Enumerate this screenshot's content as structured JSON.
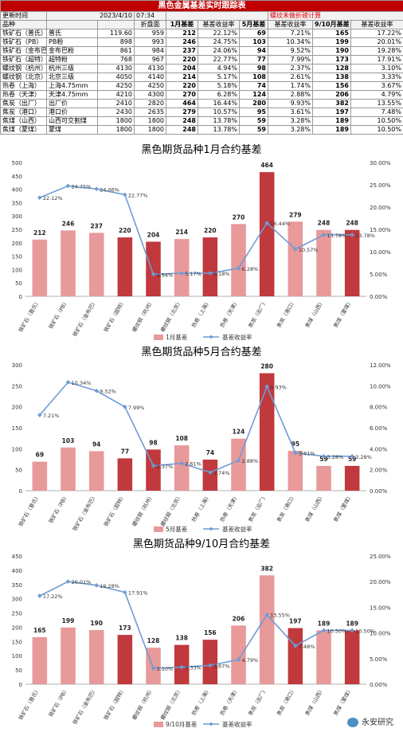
{
  "table": {
    "title": "黑色金属基差实时跟踪表",
    "update_label": "更新时间",
    "date": "2023/4/10",
    "time": "07:34",
    "note": "螺纹未做折磅计算",
    "headers": [
      "品种",
      "",
      "",
      "折盘面",
      "1月基差",
      "基差收益率",
      "5月基差",
      "基差收益率",
      "9/10月基差",
      "基差收益率"
    ],
    "rows": [
      [
        "铁矿石（普氏）",
        "普氏",
        "119.60",
        "959",
        "212",
        "22.12%",
        "69",
        "7.21%",
        "165",
        "17.22%"
      ],
      [
        "铁矿石（PB）",
        "PB粉",
        "898",
        "993",
        "246",
        "24.75%",
        "103",
        "10.34%",
        "199",
        "20.01%"
      ],
      [
        "铁矿石（金布巴）",
        "金布巴粉",
        "861",
        "984",
        "237",
        "24.06%",
        "94",
        "9.52%",
        "190",
        "19.28%"
      ],
      [
        "铁矿石（超特）",
        "超特粉",
        "768",
        "967",
        "220",
        "22.77%",
        "77",
        "7.99%",
        "173",
        "17.91%"
      ],
      [
        "螺纹钢（杭州）",
        "杭州三级",
        "4130",
        "4130",
        "204",
        "4.94%",
        "98",
        "2.37%",
        "128",
        "3.10%"
      ],
      [
        "螺纹钢（北京）",
        "北京三级",
        "4050",
        "4140",
        "214",
        "5.17%",
        "108",
        "2.61%",
        "138",
        "3.33%"
      ],
      [
        "热卷（上海）",
        "上海4.75mm",
        "4250",
        "4250",
        "220",
        "5.18%",
        "74",
        "1.74%",
        "156",
        "3.67%"
      ],
      [
        "热卷（天津）",
        "天津4.75mm",
        "4210",
        "4300",
        "270",
        "6.28%",
        "124",
        "2.88%",
        "206",
        "4.79%"
      ],
      [
        "焦炭（出厂）",
        "出厂价",
        "2410",
        "2820",
        "464",
        "16.44%",
        "280",
        "9.93%",
        "382",
        "13.55%"
      ],
      [
        "焦炭（港口）",
        "港口价",
        "2430",
        "2635",
        "279",
        "10.57%",
        "95",
        "3.61%",
        "197",
        "7.48%"
      ],
      [
        "焦煤（山西）",
        "山西可交割煤",
        "1800",
        "1800",
        "248",
        "13.78%",
        "59",
        "3.28%",
        "189",
        "10.50%"
      ],
      [
        "焦煤（蒙煤）",
        "蒙煤",
        "1800",
        "1800",
        "248",
        "13.78%",
        "59",
        "3.28%",
        "189",
        "10.50%"
      ]
    ]
  },
  "chart_data": [
    {
      "type": "bar",
      "title": "黑色期货品种1月合约基差",
      "categories": [
        "铁矿石（普氏）",
        "铁矿石（PB）",
        "铁矿石（金布巴）",
        "铁矿石（超特）",
        "螺纹钢（杭州）",
        "螺纹钢（北京）",
        "热卷（上海）",
        "热卷（天津）",
        "焦炭（出厂）",
        "焦炭（港口）",
        "焦煤（山西）",
        "焦煤（蒙煤）"
      ],
      "series": [
        {
          "name": "1月基差",
          "type": "bar",
          "axis": "left",
          "values": [
            212,
            246,
            237,
            220,
            204,
            214,
            220,
            270,
            464,
            279,
            248,
            248
          ],
          "labels": [
            "212",
            "246",
            "237",
            "220",
            "204",
            "214",
            "220",
            "270",
            "464",
            "279",
            "248",
            "248"
          ]
        },
        {
          "name": "基差收益率",
          "type": "line",
          "axis": "right",
          "values": [
            22.12,
            24.75,
            24.06,
            22.77,
            4.94,
            5.17,
            5.18,
            6.28,
            16.44,
            10.57,
            13.78,
            13.78
          ],
          "labels": [
            "22.12%",
            "24.75%",
            "24.06%",
            "22.77%",
            "4.94%",
            "5.17%",
            "5.18%",
            "6.28%",
            "16.44%",
            "10.57%",
            "13.78%",
            "13.78%"
          ]
        }
      ],
      "bar_colors": [
        "#e8999a",
        "#e8999a",
        "#e8999a",
        "#c0393c",
        "#c0393c",
        "#e8999a",
        "#c0393c",
        "#e8999a",
        "#c0393c",
        "#e8999a",
        "#e8999a",
        "#c0393c"
      ],
      "line_color": "#6f9bd4",
      "ylim": [
        0,
        500
      ],
      "yticks": [
        0,
        50,
        100,
        150,
        200,
        250,
        300,
        350,
        400,
        450,
        500
      ],
      "ylim_right": [
        0,
        30
      ],
      "yticks_right": [
        0,
        5,
        10,
        15,
        20,
        25,
        30
      ],
      "yticks_right_labels": [
        "0.00%",
        "5.00%",
        "10.00%",
        "15.00%",
        "20.00%",
        "25.00%",
        "30.00%"
      ],
      "legend_position": "bottom"
    },
    {
      "type": "bar",
      "title": "黑色期货品种5月合约基差",
      "categories": [
        "铁矿石（普氏）",
        "铁矿石（PB）",
        "铁矿石（金布巴）",
        "铁矿石（超特）",
        "螺纹钢（杭州）",
        "螺纹钢（北京）",
        "热卷（上海）",
        "热卷（天津）",
        "焦炭（出厂）",
        "焦炭（港口）",
        "焦煤（山西）",
        "焦煤（蒙煤）"
      ],
      "series": [
        {
          "name": "5月基差",
          "type": "bar",
          "axis": "left",
          "values": [
            69,
            103,
            94,
            77,
            98,
            108,
            74,
            124,
            280,
            95,
            59,
            59
          ],
          "labels": [
            "69",
            "103",
            "94",
            "77",
            "98",
            "108",
            "74",
            "124",
            "280",
            "95",
            "59",
            "59"
          ]
        },
        {
          "name": "基差收益率",
          "type": "line",
          "axis": "right",
          "values": [
            7.21,
            10.34,
            9.52,
            7.99,
            2.37,
            2.61,
            1.74,
            2.88,
            9.93,
            3.61,
            3.28,
            3.28
          ],
          "labels": [
            "7.21%",
            "10.34%",
            "9.52%",
            "7.99%",
            "2.37%",
            "2.61%",
            "1.74%",
            "2.88%",
            "9.93%",
            "3.61%",
            "3.28%",
            "3.28%"
          ]
        }
      ],
      "bar_colors": [
        "#e8999a",
        "#e8999a",
        "#e8999a",
        "#c0393c",
        "#c0393c",
        "#e8999a",
        "#c0393c",
        "#e8999a",
        "#c0393c",
        "#e8999a",
        "#e8999a",
        "#c0393c"
      ],
      "line_color": "#6f9bd4",
      "ylim": [
        0,
        300
      ],
      "yticks": [
        0,
        50,
        100,
        150,
        200,
        250,
        300
      ],
      "ylim_right": [
        0,
        12
      ],
      "yticks_right": [
        0,
        2,
        4,
        6,
        8,
        10,
        12
      ],
      "yticks_right_labels": [
        "0.00%",
        "2.00%",
        "4.00%",
        "6.00%",
        "8.00%",
        "10.00%",
        "12.00%"
      ],
      "legend_position": "bottom"
    },
    {
      "type": "bar",
      "title": "黑色期货品种9/10月合约基差",
      "categories": [
        "铁矿石（普氏）",
        "铁矿石（PB）",
        "铁矿石（金布巴）",
        "铁矿石（超特）",
        "螺纹钢（杭州）",
        "螺纹钢（北京）",
        "热卷（上海）",
        "热卷（天津）",
        "焦炭（出厂）",
        "焦炭（港口）",
        "焦煤（山西）",
        "焦煤（蒙煤）"
      ],
      "series": [
        {
          "name": "9/10月基差",
          "type": "bar",
          "axis": "left",
          "values": [
            165,
            199,
            190,
            173,
            128,
            138,
            156,
            206,
            382,
            197,
            189,
            189
          ],
          "labels": [
            "165",
            "199",
            "190",
            "173",
            "128",
            "138",
            "156",
            "206",
            "382",
            "197",
            "189",
            "189"
          ]
        },
        {
          "name": "基差收益率",
          "type": "line",
          "axis": "right",
          "values": [
            17.22,
            20.01,
            19.28,
            17.91,
            3.1,
            3.33,
            3.67,
            4.79,
            13.55,
            7.48,
            10.5,
            10.5
          ],
          "labels": [
            "17.22%",
            "20.01%",
            "19.28%",
            "17.91%",
            "3.10%",
            "3.33%",
            "3.67%",
            "4.79%",
            "13.55%",
            "7.48%",
            "10.50%",
            "10.50%"
          ]
        }
      ],
      "bar_colors": [
        "#e8999a",
        "#e8999a",
        "#e8999a",
        "#c0393c",
        "#e8999a",
        "#c0393c",
        "#c0393c",
        "#e8999a",
        "#e8999a",
        "#c0393c",
        "#e8999a",
        "#c0393c"
      ],
      "line_color": "#6f9bd4",
      "ylim": [
        0,
        450
      ],
      "yticks": [
        0,
        50,
        100,
        150,
        200,
        250,
        300,
        350,
        400,
        450
      ],
      "ylim_right": [
        0,
        25
      ],
      "yticks_right": [
        0,
        5,
        10,
        15,
        20,
        25
      ],
      "yticks_right_labels": [
        "0.00%",
        "5.00%",
        "10.00%",
        "15.00%",
        "20.00%",
        "25.00%"
      ],
      "legend_position": "bottom"
    }
  ],
  "watermark": "永安研究"
}
